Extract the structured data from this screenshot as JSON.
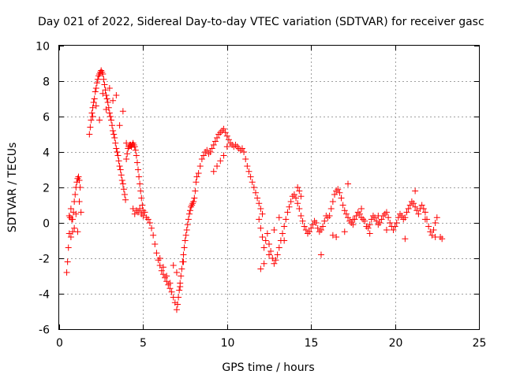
{
  "chart_data": {
    "type": "scatter",
    "title": "Day 021 of 2022, Sidereal Day-to-day VTEC variation (SDTVAR) for receiver gasc",
    "xlabel": "GPS time / hours",
    "ylabel": "SDTVAR / TECUs",
    "xlim": [
      0,
      25
    ],
    "ylim": [
      -6,
      10
    ],
    "xticks": [
      0,
      5,
      10,
      15,
      20,
      25
    ],
    "yticks": [
      -6,
      -4,
      -2,
      0,
      2,
      4,
      6,
      8,
      10
    ],
    "xtick_labels": [
      "0",
      "5",
      "10",
      "15",
      "20",
      "25"
    ],
    "ytick_labels": [
      "-6",
      "-4",
      "-2",
      "0",
      "2",
      "4",
      "6",
      "8",
      "10"
    ],
    "grid": true,
    "marker": "+",
    "color": "#ff0000",
    "series": [
      {
        "name": "SDTVAR",
        "x": [
          0.45,
          0.5,
          0.55,
          0.6,
          0.65,
          0.7,
          0.75,
          0.8,
          0.85,
          0.9,
          0.95,
          1.0,
          1.05,
          1.1,
          1.15,
          1.2,
          1.25,
          0.6,
          0.7,
          0.8,
          0.9,
          1.0,
          1.1,
          1.2,
          1.3,
          1.8,
          1.85,
          1.9,
          1.95,
          2.0,
          2.05,
          2.1,
          2.15,
          2.2,
          2.25,
          2.3,
          2.35,
          2.4,
          2.45,
          2.5,
          2.55,
          2.6,
          2.65,
          2.7,
          2.75,
          2.8,
          2.85,
          2.9,
          2.95,
          3.0,
          3.05,
          3.1,
          3.15,
          3.2,
          3.25,
          3.3,
          3.35,
          3.4,
          3.45,
          3.5,
          3.55,
          3.6,
          3.65,
          3.7,
          3.75,
          3.8,
          3.85,
          3.9,
          3.95,
          2.0,
          2.2,
          2.4,
          2.6,
          2.8,
          3.0,
          3.2,
          3.4,
          3.6,
          3.8,
          4.0,
          4.0,
          4.05,
          4.1,
          4.15,
          4.2,
          4.25,
          4.3,
          4.35,
          4.4,
          4.45,
          4.5,
          4.55,
          4.6,
          4.65,
          4.7,
          4.75,
          4.8,
          4.85,
          4.9,
          4.95,
          5.0,
          4.4,
          4.5,
          4.6,
          4.7,
          4.8,
          4.9,
          5.0,
          5.1,
          5.2,
          5.3,
          5.4,
          5.5,
          5.6,
          5.7,
          5.8,
          5.9,
          6.0,
          6.1,
          6.2,
          6.3,
          6.4,
          6.5,
          6.6,
          6.7,
          6.8,
          6.9,
          7.0,
          7.05,
          7.1,
          7.15,
          7.2,
          7.25,
          7.3,
          7.35,
          7.4,
          7.45,
          7.5,
          7.55,
          7.6,
          7.65,
          7.7,
          7.75,
          7.8,
          7.85,
          7.9,
          7.95,
          8.0,
          8.05,
          8.1,
          8.15,
          8.2,
          8.3,
          8.4,
          8.5,
          6.0,
          6.2,
          6.4,
          6.6,
          6.8,
          7.0,
          7.2,
          7.4,
          8.6,
          8.7,
          8.8,
          8.9,
          9.0,
          9.1,
          9.2,
          9.3,
          9.4,
          9.5,
          9.6,
          9.7,
          9.8,
          9.9,
          10.0,
          10.1,
          10.2,
          10.3,
          10.4,
          10.5,
          10.6,
          10.7,
          10.8,
          10.9,
          11.0,
          11.1,
          9.2,
          9.4,
          9.6,
          9.8,
          10.0,
          11.2,
          11.3,
          11.4,
          11.5,
          11.6,
          11.7,
          11.8,
          11.9,
          12.0,
          12.1,
          11.9,
          12.0,
          12.1,
          12.2,
          12.3,
          12.4,
          12.5,
          12.6,
          12.7,
          12.8,
          12.9,
          13.0,
          13.1,
          13.2,
          13.3,
          13.4,
          13.5,
          13.6,
          13.7,
          13.8,
          13.9,
          14.0,
          14.1,
          14.2,
          14.3,
          14.4,
          14.5,
          14.6,
          14.7,
          14.8,
          14.9,
          15.0,
          15.1,
          15.2,
          15.3,
          15.4,
          15.5,
          15.6,
          15.7,
          15.8,
          15.9,
          16.0,
          12.0,
          12.2,
          12.5,
          12.8,
          13.1,
          13.4,
          14.2,
          14.3,
          14.4,
          16.1,
          16.2,
          16.3,
          16.4,
          16.5,
          16.6,
          16.7,
          16.8,
          16.9,
          17.0,
          17.1,
          17.2,
          17.3,
          17.4,
          17.5,
          17.6,
          17.7,
          17.8,
          17.9,
          18.0,
          18.1,
          18.2,
          18.3,
          18.4,
          18.5,
          18.6,
          18.7,
          18.8,
          18.9,
          19.0,
          19.1,
          19.2,
          19.3,
          19.4,
          19.5,
          19.6,
          19.7,
          19.8,
          19.9,
          20.0,
          16.5,
          17.0,
          17.5,
          18.0,
          18.5,
          19.0,
          19.5,
          20.1,
          20.2,
          20.3,
          20.4,
          20.5,
          20.6,
          20.7,
          20.8,
          20.9,
          21.0,
          21.1,
          21.2,
          21.3,
          21.4,
          21.5,
          21.6,
          21.7,
          21.8,
          21.9,
          22.0,
          22.1,
          22.2,
          22.3,
          22.4,
          22.5,
          20.6,
          21.2,
          21.8,
          22.4,
          22.7,
          22.8,
          15.6,
          16.3,
          17.2
        ],
        "y": [
          -2.8,
          -2.2,
          -1.4,
          -0.6,
          0.3,
          0.8,
          0.2,
          -0.5,
          0.6,
          1.2,
          1.6,
          2.0,
          2.3,
          2.5,
          2.6,
          2.4,
          2.0,
          0.4,
          -0.8,
          0.2,
          -0.3,
          0.5,
          -0.5,
          1.2,
          0.6,
          5.0,
          5.4,
          5.8,
          6.2,
          6.5,
          6.8,
          7.0,
          7.4,
          7.6,
          7.9,
          8.1,
          8.3,
          8.4,
          8.5,
          8.6,
          8.5,
          8.4,
          8.1,
          7.8,
          7.5,
          7.2,
          7.0,
          6.8,
          6.5,
          6.2,
          6.0,
          5.8,
          5.5,
          5.2,
          5.0,
          4.8,
          4.5,
          4.2,
          4.0,
          3.8,
          3.5,
          3.2,
          3.0,
          2.7,
          2.4,
          2.2,
          1.9,
          1.6,
          1.3,
          6.0,
          6.6,
          5.8,
          7.3,
          6.4,
          7.6,
          6.9,
          7.2,
          5.5,
          6.3,
          4.5,
          3.6,
          3.9,
          4.2,
          4.3,
          4.4,
          4.4,
          4.3,
          4.4,
          4.5,
          4.4,
          4.3,
          4.1,
          3.8,
          3.4,
          3.0,
          2.6,
          2.2,
          1.8,
          1.4,
          1.0,
          0.7,
          0.8,
          0.5,
          0.7,
          0.6,
          0.8,
          0.5,
          0.4,
          0.6,
          0.3,
          0.2,
          0.0,
          -0.3,
          -0.7,
          -1.2,
          -1.7,
          -2.1,
          -2.4,
          -2.7,
          -2.9,
          -3.1,
          -3.3,
          -3.5,
          -3.7,
          -3.9,
          -4.2,
          -4.5,
          -4.9,
          -4.6,
          -4.2,
          -3.8,
          -3.4,
          -3.0,
          -2.6,
          -2.2,
          -1.8,
          -1.4,
          -1.0,
          -0.7,
          -0.4,
          -0.1,
          0.2,
          0.5,
          0.7,
          0.9,
          1.0,
          1.1,
          1.2,
          1.4,
          1.8,
          2.3,
          2.6,
          2.8,
          3.2,
          3.6,
          -2.0,
          -2.5,
          -3.0,
          -3.4,
          -2.4,
          -2.8,
          -3.6,
          -2.2,
          3.8,
          4.0,
          4.1,
          3.9,
          4.0,
          4.2,
          4.4,
          4.6,
          4.8,
          5.0,
          5.1,
          5.2,
          5.3,
          5.1,
          4.9,
          4.7,
          4.5,
          4.4,
          4.3,
          4.4,
          4.3,
          4.2,
          4.1,
          4.2,
          4.0,
          3.6,
          2.9,
          3.2,
          3.5,
          3.8,
          4.3,
          3.2,
          2.9,
          2.6,
          2.3,
          2.0,
          1.7,
          1.4,
          1.1,
          0.8,
          0.5,
          0.2,
          -0.3,
          -0.8,
          -1.4,
          -1.0,
          -0.6,
          -1.2,
          -1.6,
          -2.0,
          -2.3,
          -2.1,
          -1.8,
          -1.4,
          -1.0,
          -0.6,
          -0.2,
          0.2,
          0.6,
          0.9,
          1.2,
          1.5,
          1.6,
          1.4,
          1.1,
          0.8,
          0.4,
          0.1,
          -0.2,
          -0.4,
          -0.6,
          -0.5,
          -0.3,
          -0.1,
          0.1,
          0.0,
          -0.3,
          -0.5,
          -0.4,
          -0.2,
          0.1,
          0.4,
          0.3,
          -2.6,
          -2.3,
          -1.8,
          -0.4,
          0.3,
          -1.0,
          2.0,
          1.8,
          1.5,
          0.4,
          0.8,
          1.2,
          1.6,
          1.8,
          1.9,
          1.7,
          1.4,
          1.0,
          0.7,
          0.5,
          0.3,
          0.1,
          0.0,
          -0.1,
          0.2,
          0.4,
          0.6,
          0.5,
          0.3,
          0.2,
          0.1,
          -0.2,
          -0.3,
          -0.1,
          0.2,
          0.4,
          0.3,
          0.1,
          -0.1,
          0.0,
          0.2,
          0.4,
          0.5,
          0.6,
          0.3,
          0.0,
          -0.2,
          -0.4,
          -0.2,
          -0.8,
          -0.5,
          0.2,
          0.8,
          -0.6,
          0.4,
          -0.4,
          0.0,
          0.3,
          0.5,
          0.4,
          0.2,
          0.3,
          0.6,
          0.8,
          1.0,
          1.2,
          1.1,
          0.9,
          0.7,
          0.5,
          0.8,
          1.0,
          0.8,
          0.6,
          0.2,
          -0.2,
          -0.5,
          -0.7,
          -0.4,
          0.0,
          0.3,
          -0.9,
          1.8,
          0.2,
          -0.8,
          -0.8,
          -0.9,
          -1.8,
          -0.7,
          2.2
        ]
      }
    ]
  }
}
